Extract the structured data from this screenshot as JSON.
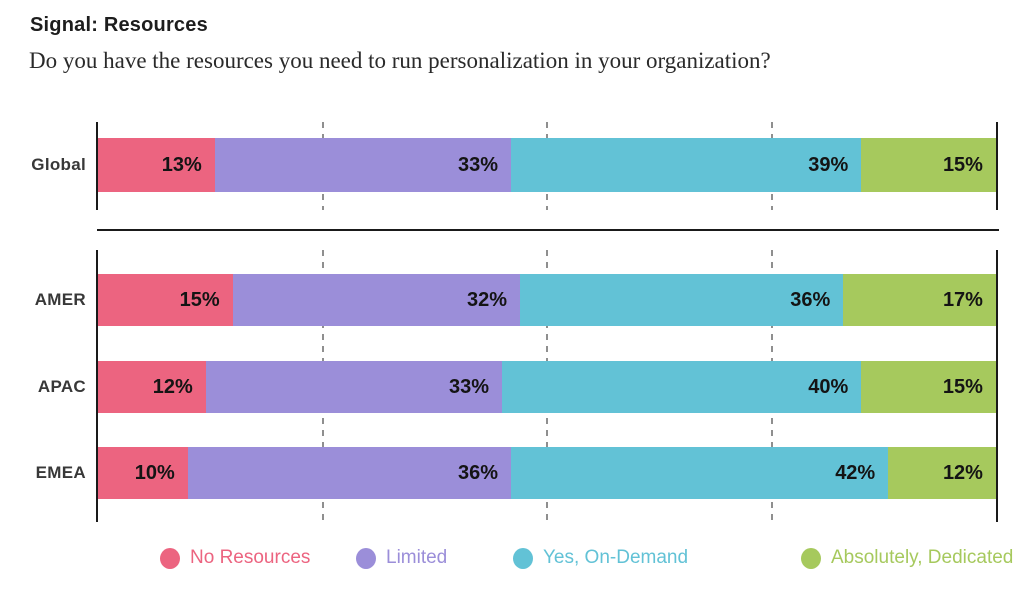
{
  "header": {
    "title": "Signal: Resources",
    "subtitle": "Do you have the resources you need to run personalization in your organization?"
  },
  "chart_data": {
    "type": "bar",
    "stacked": true,
    "orientation": "horizontal",
    "title": "Signal: Resources",
    "question": "Do you have the resources you need to run personalization in your organization?",
    "unit": "%",
    "xlim": [
      0,
      100
    ],
    "gridlines_pct": [
      25,
      50,
      75
    ],
    "grid": "dashed-vertical",
    "legend_position": "bottom",
    "series": [
      {
        "name": "No Resources",
        "color": "#EC6480"
      },
      {
        "name": "Limited",
        "color": "#9B8ED9"
      },
      {
        "name": "Yes, On-Demand",
        "color": "#62C2D6"
      },
      {
        "name": "Absolutely, Dedicated",
        "color": "#A6C95D"
      }
    ],
    "groups": [
      {
        "rows": [
          {
            "label": "Global",
            "values": [
              13,
              33,
              39,
              15
            ]
          }
        ]
      },
      {
        "rows": [
          {
            "label": "AMER",
            "values": [
              15,
              32,
              36,
              17
            ]
          },
          {
            "label": "APAC",
            "values": [
              12,
              33,
              40,
              15
            ]
          },
          {
            "label": "EMEA",
            "values": [
              10,
              36,
              42,
              12
            ]
          }
        ]
      }
    ]
  }
}
